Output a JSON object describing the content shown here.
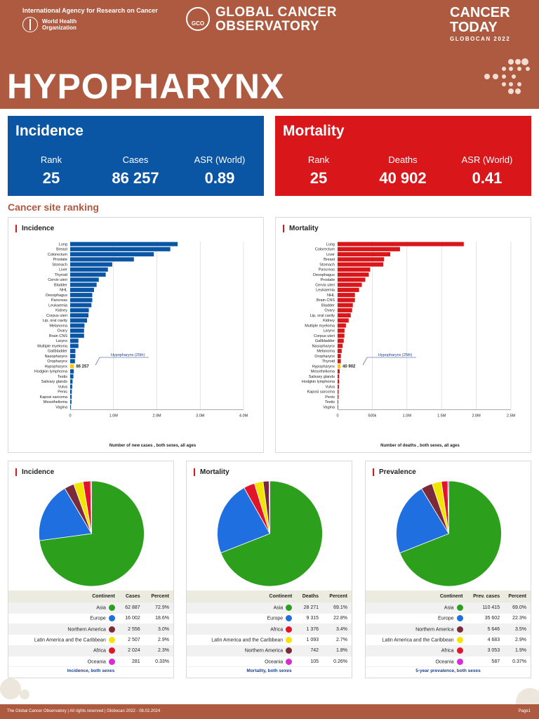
{
  "header": {
    "iarc_name": "International Agency for Research on Cancer",
    "who_name": "World Health Organization",
    "gco_badge": "GCO",
    "gco_title": "GLOBAL CANCER OBSERVATORY",
    "ct_title": "CANCER TODAY",
    "ct_sub": "GLOBOCAN 2022",
    "main_title": "HYPOPHARYNX",
    "color": "#ad5a40"
  },
  "incidence_kpi": {
    "title": "Incidence",
    "rank_label": "Rank",
    "rank": "25",
    "cases_label": "Cases",
    "cases": "86 257",
    "asr_label": "ASR (World)",
    "asr": "0.89",
    "color": "#0b55a5"
  },
  "mortality_kpi": {
    "title": "Mortality",
    "rank_label": "Rank",
    "rank": "25",
    "deaths_label": "Deaths",
    "deaths": "40 902",
    "asr_label": "ASR (World)",
    "asr": "0.41",
    "color": "#d9161a"
  },
  "section_title": "Cancer site ranking",
  "chart_data": [
    {
      "type": "bar",
      "orientation": "horizontal",
      "title": "Incidence",
      "xlabel": "Number of new cases , both sexes, all ages",
      "xlim": [
        0,
        4000000
      ],
      "ticks": [
        0,
        1000000,
        2000000,
        3000000,
        4000000
      ],
      "tick_labels": [
        "0",
        "1.0M",
        "2.0M",
        "3.0M",
        "4.0M"
      ],
      "color": "#0b55a5",
      "highlight_color": "#f5c518",
      "highlight": "Hypopharynx",
      "annotation": "Hypopharynx (25th)",
      "highlight_value_label": "86 257",
      "categories": [
        "Lung",
        "Breast",
        "Colorectum",
        "Prostate",
        "Stomach",
        "Liver",
        "Thyroid",
        "Cervix uteri",
        "Bladder",
        "NHL",
        "Oesophagus",
        "Pancreas",
        "Leukaemia",
        "Kidney",
        "Corpus uteri",
        "Lip, oral cavity",
        "Melanoma",
        "Ovary",
        "Brain CNS",
        "Larynx",
        "Multiple myeloma",
        "Gallbladder",
        "Nasopharynx",
        "Oropharynx",
        "Hypopharynx",
        "Hodgkin lymphoma",
        "Testis",
        "Salivary glands",
        "Vulva",
        "Penis",
        "Kaposi sarcoma",
        "Mesothelioma",
        "Vagina"
      ],
      "values": [
        2480000,
        2310000,
        1930000,
        1470000,
        970000,
        870000,
        820000,
        660000,
        610000,
        550000,
        510000,
        510000,
        490000,
        430000,
        420000,
        390000,
        330000,
        320000,
        320000,
        190000,
        190000,
        120000,
        120000,
        110000,
        86257,
        83000,
        74000,
        55000,
        47000,
        38000,
        35000,
        31000,
        18000
      ]
    },
    {
      "type": "bar",
      "orientation": "horizontal",
      "title": "Mortality",
      "xlabel": "Number of deaths , both sexes, all ages",
      "xlim": [
        0,
        2500000
      ],
      "ticks": [
        0,
        500000,
        1000000,
        1500000,
        2000000,
        2500000
      ],
      "tick_labels": [
        "0",
        "500k",
        "1.0M",
        "1.5M",
        "2.0M",
        "2.5M"
      ],
      "color": "#d9161a",
      "highlight_color": "#f5c518",
      "highlight": "Hypopharynx",
      "annotation": "Hypopharynx (25th)",
      "highlight_value_label": "40 902",
      "categories": [
        "Lung",
        "Colorectum",
        "Liver",
        "Breast",
        "Stomach",
        "Pancreas",
        "Oesophagus",
        "Prostate",
        "Cervix uteri",
        "Leukaemia",
        "NHL",
        "Brain CNS",
        "Bladder",
        "Ovary",
        "Lip, oral cavity",
        "Kidney",
        "Multiple myeloma",
        "Larynx",
        "Corpus uteri",
        "Gallbladder",
        "Nasopharynx",
        "Melanoma",
        "Oropharynx",
        "Thyroid",
        "Hypopharynx",
        "Mesothelioma",
        "Salivary glands",
        "Hodgkin lymphoma",
        "Vulva",
        "Kaposi sarcoma",
        "Penis",
        "Testis",
        "Vagina"
      ],
      "values": [
        1820000,
        900000,
        760000,
        670000,
        660000,
        470000,
        450000,
        400000,
        350000,
        310000,
        250000,
        250000,
        220000,
        210000,
        190000,
        160000,
        120000,
        100000,
        98000,
        89000,
        73000,
        59000,
        48000,
        47000,
        40902,
        30000,
        22000,
        23000,
        19000,
        15000,
        14000,
        10000,
        9000
      ]
    },
    {
      "type": "pie",
      "title": "Incidence",
      "caption": "Incidence, both sexes",
      "columns": [
        "Continent",
        "Cases",
        "Percent"
      ],
      "rows": [
        {
          "name": "Asia",
          "value": "62 887",
          "percent": "72.9%",
          "color": "#2ca01c"
        },
        {
          "name": "Europe",
          "value": "16 002",
          "percent": "18.6%",
          "color": "#1f6fe0"
        },
        {
          "name": "Northern America",
          "value": "2 556",
          "percent": "3.0%",
          "color": "#7b2a3b"
        },
        {
          "name": "Latin America and the Caribbean",
          "value": "2 507",
          "percent": "2.9%",
          "color": "#f2e500"
        },
        {
          "name": "Africa",
          "value": "2 024",
          "percent": "2.3%",
          "color": "#e2142b"
        },
        {
          "name": "Oceania",
          "value": "281",
          "percent": "0.33%",
          "color": "#d92bd1"
        }
      ],
      "percents": [
        72.9,
        18.6,
        3.0,
        2.9,
        2.3,
        0.33
      ]
    },
    {
      "type": "pie",
      "title": "Mortality",
      "caption": "Mortality, both sexes",
      "columns": [
        "Continent",
        "Deaths",
        "Percent"
      ],
      "rows": [
        {
          "name": "Asia",
          "value": "28 271",
          "percent": "69.1%",
          "color": "#2ca01c"
        },
        {
          "name": "Europe",
          "value": "9 315",
          "percent": "22.8%",
          "color": "#1f6fe0"
        },
        {
          "name": "Africa",
          "value": "1 376",
          "percent": "3.4%",
          "color": "#e2142b"
        },
        {
          "name": "Latin America and the Caribbean",
          "value": "1 093",
          "percent": "2.7%",
          "color": "#f2e500"
        },
        {
          "name": "Northern America",
          "value": "742",
          "percent": "1.8%",
          "color": "#7b2a3b"
        },
        {
          "name": "Oceania",
          "value": "105",
          "percent": "0.26%",
          "color": "#d92bd1"
        }
      ],
      "percents": [
        69.1,
        22.8,
        3.4,
        2.7,
        1.8,
        0.26
      ]
    },
    {
      "type": "pie",
      "title": "Prevalence",
      "caption": "5-year prevalence, both sexes",
      "columns": [
        "Continent",
        "Prev. cases",
        "Percent"
      ],
      "rows": [
        {
          "name": "Asia",
          "value": "110 415",
          "percent": "69.0%",
          "color": "#2ca01c"
        },
        {
          "name": "Europe",
          "value": "35 602",
          "percent": "22.3%",
          "color": "#1f6fe0"
        },
        {
          "name": "Northern America",
          "value": "5 646",
          "percent": "3.5%",
          "color": "#7b2a3b"
        },
        {
          "name": "Latin America and the Caribbean",
          "value": "4 683",
          "percent": "2.9%",
          "color": "#f2e500"
        },
        {
          "name": "Africa",
          "value": "3 053",
          "percent": "1.9%",
          "color": "#e2142b"
        },
        {
          "name": "Oceania",
          "value": "587",
          "percent": "0.37%",
          "color": "#d92bd1"
        }
      ],
      "percents": [
        69.0,
        22.3,
        3.5,
        2.9,
        1.9,
        0.37
      ]
    }
  ],
  "footer": {
    "left": "The Global Cancer Observatory | All rights reserved | Globocan 2022 - 08.02.2024",
    "right": "Page1"
  }
}
